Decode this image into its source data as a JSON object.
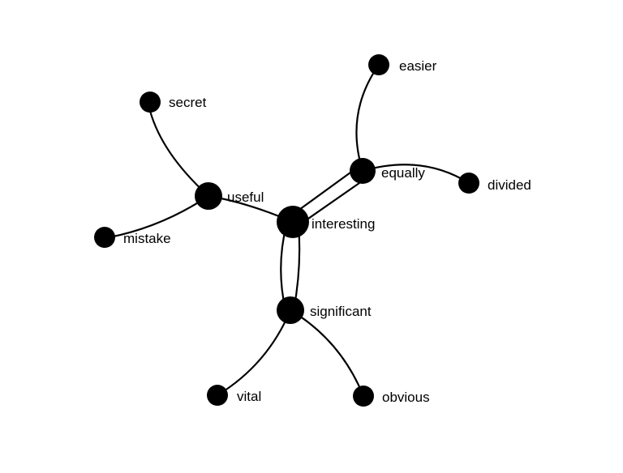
{
  "nodes": [
    {
      "id": "interesting",
      "label": "interesting"
    },
    {
      "id": "useful",
      "label": "useful"
    },
    {
      "id": "secret",
      "label": "secret"
    },
    {
      "id": "mistake",
      "label": "mistake"
    },
    {
      "id": "equally",
      "label": "equally"
    },
    {
      "id": "easier",
      "label": "easier"
    },
    {
      "id": "divided",
      "label": "divided"
    },
    {
      "id": "significant",
      "label": "significant"
    },
    {
      "id": "vital",
      "label": "vital"
    },
    {
      "id": "obvious",
      "label": "obvious"
    }
  ],
  "edges": [
    {
      "from": "interesting",
      "to": "useful",
      "strands": 1
    },
    {
      "from": "interesting",
      "to": "equally",
      "strands": 2
    },
    {
      "from": "interesting",
      "to": "significant",
      "strands": 2
    },
    {
      "from": "useful",
      "to": "secret",
      "strands": 1
    },
    {
      "from": "useful",
      "to": "mistake",
      "strands": 1
    },
    {
      "from": "equally",
      "to": "easier",
      "strands": 1
    },
    {
      "from": "equally",
      "to": "divided",
      "strands": 1
    },
    {
      "from": "significant",
      "to": "vital",
      "strands": 1
    },
    {
      "from": "significant",
      "to": "obvious",
      "strands": 1
    }
  ],
  "colors": {
    "node": "#000000",
    "edge": "#000000",
    "background": "#ffffff"
  }
}
